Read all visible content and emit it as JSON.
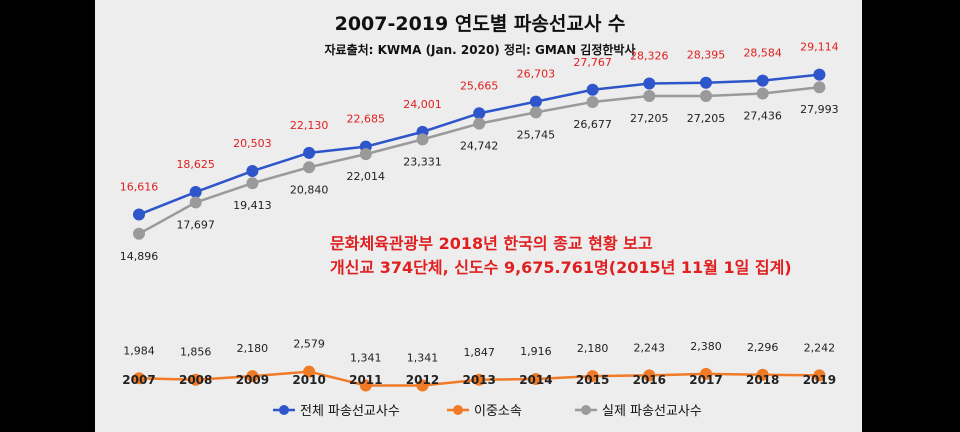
{
  "chart_data": {
    "type": "line",
    "title": "2007-2019 연도별 파송선교사 수",
    "subtitle": "자료출처: KWMA (Jan. 2020) 정리: GMAN 김정한박사",
    "categories": [
      "2007",
      "2008",
      "2009",
      "2010",
      "2011",
      "2012",
      "2013",
      "2014",
      "2015",
      "2016",
      "2017",
      "2018",
      "2019"
    ],
    "series": [
      {
        "name": "전체 파송선교사수",
        "color": "#2e55c9",
        "label_color": "#e02020",
        "label_position": "above",
        "values": [
          16616,
          18625,
          20503,
          22130,
          22685,
          24001,
          25665,
          26703,
          27767,
          28326,
          28395,
          28584,
          29114
        ]
      },
      {
        "name": "이중소속",
        "color": "#f07a26",
        "label_color": "#222222",
        "label_position": "above",
        "values": [
          1984,
          1856,
          2180,
          2579,
          1341,
          1341,
          1847,
          1916,
          2180,
          2243,
          2380,
          2296,
          2242
        ]
      },
      {
        "name": "실제 파송선교사수",
        "color": "#9a9a9a",
        "label_color": "#222222",
        "label_position": "below",
        "values": [
          14896,
          17697,
          19413,
          20840,
          22014,
          23331,
          24742,
          25745,
          26677,
          27205,
          27205,
          27436,
          27993
        ]
      }
    ],
    "annotations": [
      "문화체육관광부 2018년 한국의 종교 현황 보고",
      "개신교 374단체, 신도수 9,675.761명(2015년 11월 1일 집계)"
    ],
    "grid": false,
    "legend": "bottom",
    "ylim": [
      -8000,
      34000
    ]
  }
}
